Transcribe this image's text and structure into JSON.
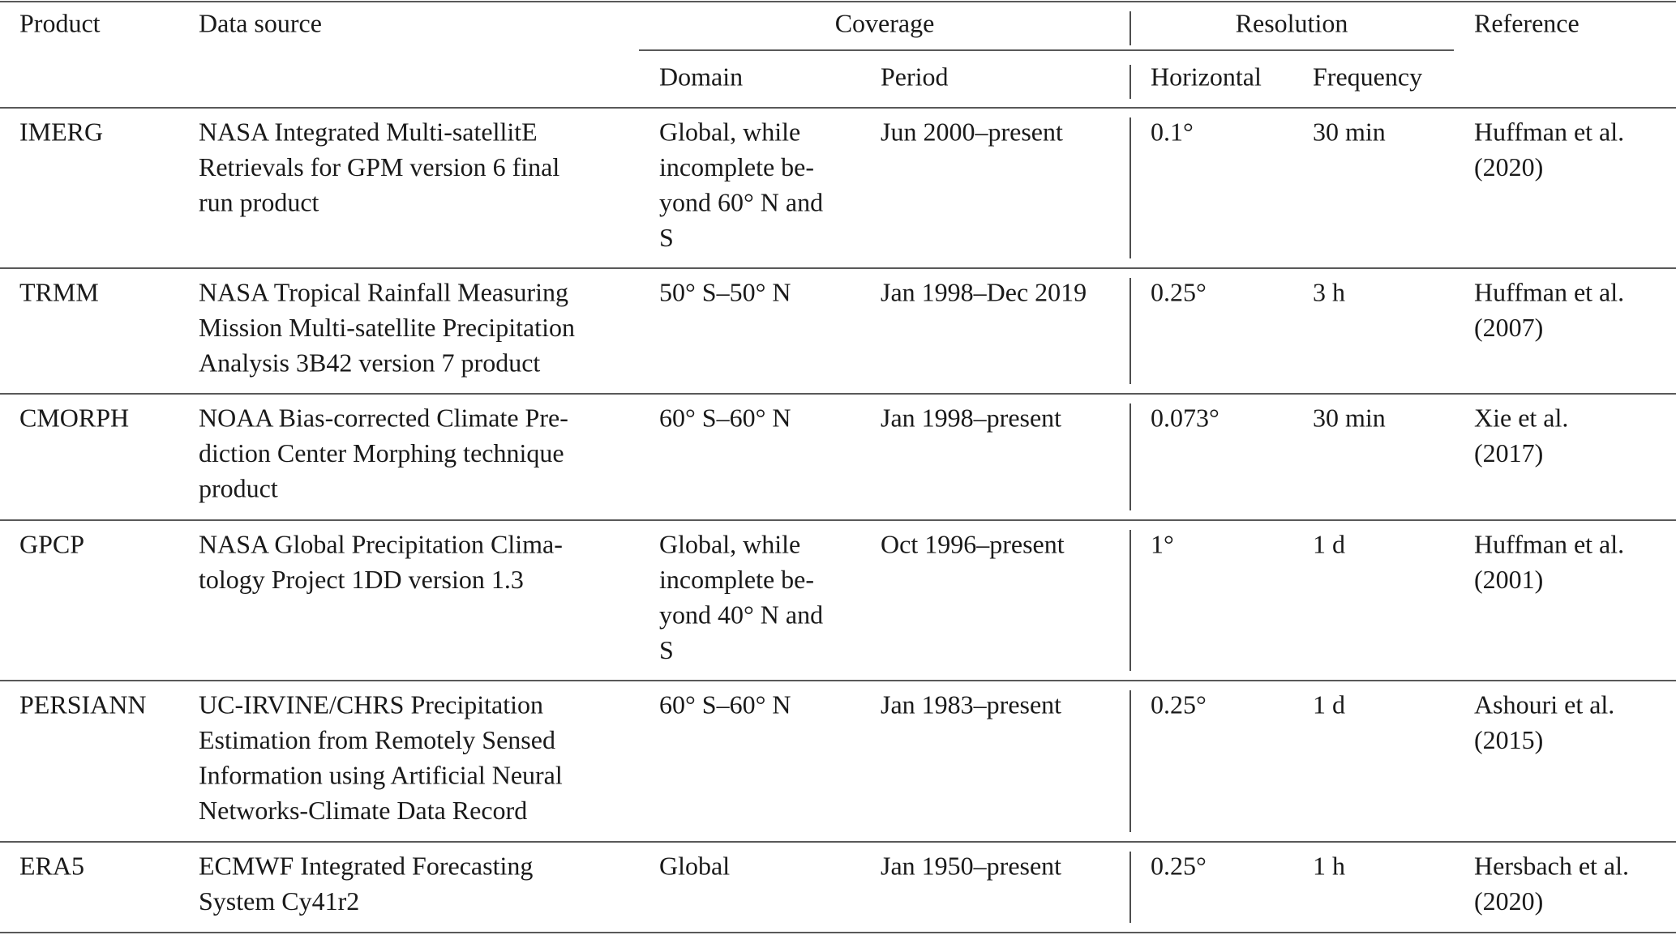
{
  "header": {
    "product": "Product",
    "data_source": "Data source",
    "coverage": "Coverage",
    "resolution": "Resolution",
    "reference": "Reference",
    "domain": "Domain",
    "period": "Period",
    "horizontal": "Horizontal",
    "frequency": "Frequency"
  },
  "rows": [
    [
      [
        "IMERG"
      ],
      [
        "NASA Integrated Multi-satellitE",
        "Retrievals for GPM version 6 final",
        "run product"
      ],
      [
        "Global, while",
        "incomplete be-",
        "yond 60° N and",
        "S"
      ],
      [
        "Jun 2000–present"
      ],
      [
        "0.1°"
      ],
      [
        "30 min"
      ],
      [
        "Huffman et al.",
        "(2020)"
      ]
    ],
    [
      [
        "TRMM"
      ],
      [
        "NASA Tropical Rainfall Measuring",
        "Mission Multi-satellite Precipitation",
        "Analysis 3B42 version 7 product"
      ],
      [
        "50° S–50° N"
      ],
      [
        "Jan 1998–Dec 2019"
      ],
      [
        "0.25°"
      ],
      [
        "3 h"
      ],
      [
        "Huffman et al.",
        "(2007)"
      ]
    ],
    [
      [
        "CMORPH"
      ],
      [
        "NOAA Bias-corrected Climate Pre-",
        "diction Center Morphing technique",
        "product"
      ],
      [
        "60° S–60° N"
      ],
      [
        "Jan 1998–present"
      ],
      [
        "0.073°"
      ],
      [
        "30 min"
      ],
      [
        "Xie et al.",
        "(2017)"
      ]
    ],
    [
      [
        "GPCP"
      ],
      [
        "NASA Global Precipitation Clima-",
        "tology Project 1DD version 1.3"
      ],
      [
        "Global, while",
        "incomplete be-",
        "yond 40° N and",
        "S"
      ],
      [
        "Oct 1996–present"
      ],
      [
        "1°"
      ],
      [
        "1 d"
      ],
      [
        "Huffman et al.",
        "(2001)"
      ]
    ],
    [
      [
        "PERSIANN"
      ],
      [
        "UC-IRVINE/CHRS Precipitation",
        "Estimation from Remotely Sensed",
        "Information using Artificial Neural",
        "Networks-Climate Data Record"
      ],
      [
        "60° S–60° N"
      ],
      [
        "Jan 1983–present"
      ],
      [
        "0.25°"
      ],
      [
        "1 d"
      ],
      [
        "Ashouri et al.",
        "(2015)"
      ]
    ],
    [
      [
        "ERA5"
      ],
      [
        "ECMWF Integrated Forecasting",
        "System Cy41r2"
      ],
      [
        "Global"
      ],
      [
        "Jan 1950–present"
      ],
      [
        "0.25°"
      ],
      [
        "1 h"
      ],
      [
        "Hersbach et al.",
        "(2020)"
      ]
    ]
  ]
}
